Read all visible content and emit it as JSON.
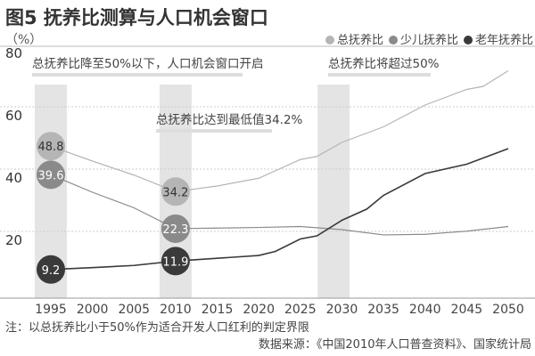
{
  "chart_data": {
    "type": "line",
    "title": "图5 抚养比测算与人口机会窗口",
    "ylabel": "（%）",
    "xlabel": "",
    "ylim": [
      0,
      80
    ],
    "yticks": [
      20,
      40,
      60,
      80
    ],
    "xticks": [
      1995,
      2000,
      2005,
      2010,
      2015,
      2020,
      2025,
      2030,
      2035,
      2040,
      2045,
      2050
    ],
    "grid": "horizontal dashed",
    "legend_position": "top-right",
    "highlight_bands": [
      1995,
      2010,
      2029
    ],
    "series": [
      {
        "name": "总抚养比",
        "color": "#b5b5b5",
        "x": [
          1995,
          2000,
          2005,
          2010,
          2015,
          2020,
          2025,
          2027,
          2030,
          2035,
          2040,
          2045,
          2047,
          2050
        ],
        "y": [
          48.8,
          44,
          39.5,
          34.2,
          36,
          38.5,
          44.5,
          45.5,
          50,
          55,
          62,
          67,
          68,
          73
        ]
      },
      {
        "name": "少儿抚养比",
        "color": "#8a8a8a",
        "x": [
          1995,
          2000,
          2005,
          2010,
          2015,
          2020,
          2025,
          2030,
          2035,
          2040,
          2045,
          2050
        ],
        "y": [
          39.6,
          34,
          29,
          22.3,
          22.5,
          22.7,
          23,
          22,
          20.3,
          20.5,
          21.5,
          23
        ]
      },
      {
        "name": "老年抚养比",
        "color": "#3a3a3a",
        "x": [
          1995,
          2000,
          2005,
          2010,
          2015,
          2020,
          2022,
          2025,
          2027,
          2030,
          2033,
          2035,
          2040,
          2045,
          2047,
          2050
        ],
        "y": [
          9.2,
          9.8,
          10.5,
          11.9,
          12.8,
          13.7,
          15,
          19,
          20,
          25,
          28.6,
          33,
          40,
          43,
          45,
          48
        ]
      }
    ],
    "data_labels": [
      {
        "x": 1995,
        "y": 48.8,
        "text": "48.8",
        "series": 0
      },
      {
        "x": 1995,
        "y": 39.6,
        "text": "39.6",
        "series": 1
      },
      {
        "x": 1995,
        "y": 9.2,
        "text": "9.2",
        "series": 2
      },
      {
        "x": 2010,
        "y": 34.2,
        "text": "34.2",
        "series": 0
      },
      {
        "x": 2010,
        "y": 22.3,
        "text": "22.3",
        "series": 1
      },
      {
        "x": 2010,
        "y": 11.9,
        "text": "11.9",
        "series": 2
      }
    ],
    "annotations": [
      {
        "text": "总抚养比降至50%以下，人口机会窗口开启"
      },
      {
        "text": "总抚养比将超过50%"
      },
      {
        "text": "总抚养比达到最低值34.2%"
      }
    ]
  },
  "footer": {
    "note": "注：以总抚养比小于50%作为适合开发人口红利的判定界限",
    "source": "数据来源：《中国2010年人口普查资料》、国家统计局"
  }
}
